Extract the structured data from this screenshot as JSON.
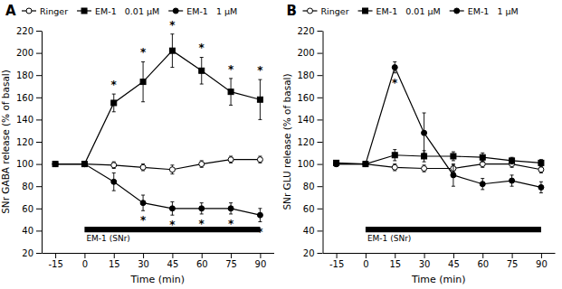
{
  "chart_data": [
    {
      "type": "line",
      "title": "A",
      "x_label": "Time (min)",
      "y_label": "SNr GABA release (% of basal)",
      "x": [
        -15,
        0,
        15,
        30,
        45,
        60,
        75,
        90
      ],
      "xlim": [
        -22,
        97
      ],
      "xticks": [
        -15,
        0,
        15,
        30,
        45,
        60,
        75,
        90
      ],
      "ylim": [
        20,
        220
      ],
      "yticks": [
        20,
        40,
        60,
        80,
        100,
        120,
        140,
        160,
        180,
        200,
        220
      ],
      "grid": false,
      "legend": "upper left",
      "significance_label": "*",
      "bar_annotation": {
        "label": "EM-1 (SNr)",
        "x": [
          0,
          90
        ],
        "y_center": 41,
        "y_height": 5,
        "color": "#000000"
      },
      "series": [
        {
          "name": "Ringer",
          "color": "#000000",
          "marker": "open-circle",
          "line_style": "solid",
          "values": [
            100,
            100,
            99,
            97,
            95,
            100,
            104,
            104
          ],
          "errors": [
            2,
            2,
            3,
            3,
            4,
            3,
            3,
            3
          ]
        },
        {
          "name": "EM-1   0.01 μM",
          "color": "#000000",
          "marker": "square",
          "line_style": "solid",
          "values": [
            100,
            100,
            155,
            174,
            202,
            184,
            165,
            158
          ],
          "errors": [
            2,
            2,
            8,
            18,
            15,
            12,
            12,
            18
          ],
          "significance": [
            false,
            false,
            true,
            true,
            true,
            true,
            true,
            true
          ],
          "significance_side": "above"
        },
        {
          "name": "EM-1   1 μM",
          "color": "#000000",
          "marker": "circle",
          "line_style": "solid",
          "values": [
            100,
            100,
            84,
            65,
            60,
            60,
            60,
            54
          ],
          "errors": [
            2,
            2,
            8,
            7,
            6,
            5,
            5,
            6
          ],
          "significance": [
            false,
            false,
            false,
            true,
            true,
            true,
            true,
            true
          ],
          "significance_side": "below"
        }
      ]
    },
    {
      "type": "line",
      "title": "B",
      "x_label": "Time (min)",
      "y_label": "SNr GLU release (% of basal)",
      "x": [
        -15,
        0,
        15,
        30,
        45,
        60,
        75,
        90
      ],
      "xlim": [
        -22,
        97
      ],
      "xticks": [
        -15,
        0,
        15,
        30,
        45,
        60,
        75,
        90
      ],
      "ylim": [
        20,
        220
      ],
      "yticks": [
        20,
        40,
        60,
        80,
        100,
        120,
        140,
        160,
        180,
        200,
        220
      ],
      "grid": false,
      "legend": "upper left",
      "significance_label": "*",
      "bar_annotation": {
        "label": "EM-1 (SNr)",
        "x": [
          0,
          90
        ],
        "y_center": 41,
        "y_height": 5,
        "color": "#000000"
      },
      "series": [
        {
          "name": "Ringer",
          "color": "#000000",
          "marker": "open-circle",
          "line_style": "solid",
          "values": [
            100,
            100,
            97,
            96,
            96,
            100,
            100,
            95
          ],
          "errors": [
            2,
            2,
            3,
            3,
            3,
            3,
            3,
            3
          ]
        },
        {
          "name": "EM-1   0.01 μM",
          "color": "#000000",
          "marker": "square",
          "line_style": "solid",
          "values": [
            101,
            100,
            108,
            107,
            107,
            106,
            103,
            101
          ],
          "errors": [
            2,
            2,
            5,
            5,
            4,
            4,
            3,
            3
          ],
          "significance": [
            false,
            false,
            false,
            false,
            false,
            false,
            false,
            false
          ],
          "significance_side": "above"
        },
        {
          "name": "EM-1   1 μM",
          "color": "#000000",
          "marker": "circle",
          "line_style": "solid",
          "values": [
            100,
            100,
            187,
            128,
            90,
            82,
            85,
            79
          ],
          "errors": [
            2,
            2,
            5,
            18,
            10,
            5,
            5,
            5
          ],
          "significance": [
            false,
            false,
            true,
            false,
            false,
            false,
            false,
            false
          ],
          "significance_side": "below"
        }
      ]
    }
  ]
}
